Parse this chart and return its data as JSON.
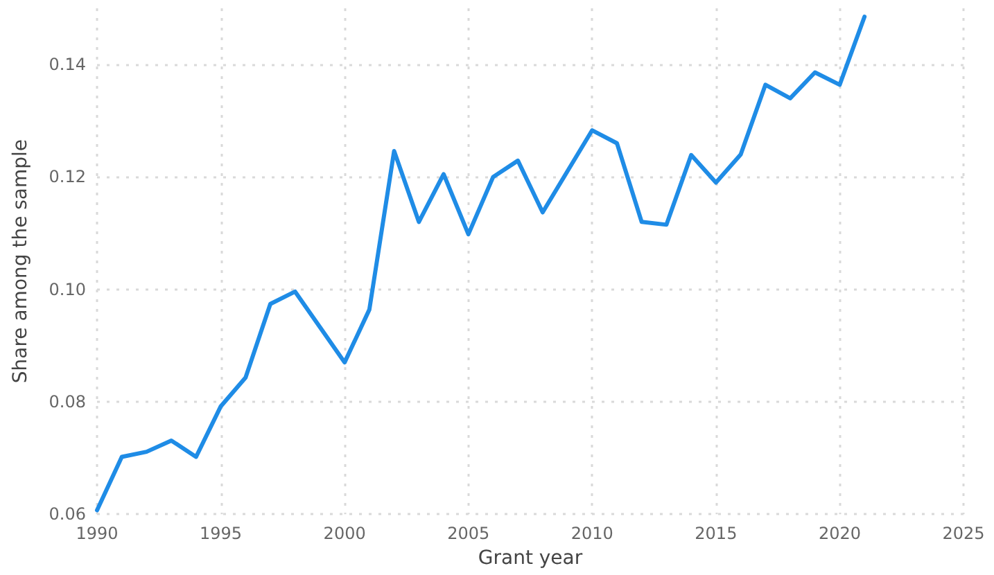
{
  "chart_data": {
    "type": "line",
    "xlabel": "Grant year",
    "ylabel": "Share among the sample",
    "x": [
      1990,
      1991,
      1992,
      1993,
      1994,
      1995,
      1996,
      1997,
      1998,
      1999,
      2000,
      2001,
      2002,
      2003,
      2004,
      2005,
      2006,
      2007,
      2008,
      2009,
      2010,
      2011,
      2012,
      2013,
      2014,
      2015,
      2016,
      2017,
      2018,
      2019,
      2020,
      2021
    ],
    "series": [
      {
        "color": "#1f8ce6",
        "values": [
          0.0607,
          0.0702,
          0.0711,
          0.0731,
          0.0702,
          0.0792,
          0.0843,
          0.0974,
          0.0996,
          0.0933,
          0.087,
          0.0964,
          0.1246,
          0.112,
          0.1205,
          0.1098,
          0.12,
          0.1229,
          0.1137,
          0.121,
          0.1283,
          0.126,
          0.112,
          0.1115,
          0.1239,
          0.119,
          0.124,
          0.1364,
          0.134,
          0.1386,
          0.1364,
          0.1485
        ]
      }
    ],
    "xlim": [
      1990,
      2025
    ],
    "xticks": [
      1990,
      1995,
      2000,
      2005,
      2010,
      2015,
      2020,
      2025
    ],
    "ylim": [
      0.06,
      0.15
    ],
    "yticks": [
      {
        "value": 0.06,
        "label": "0.06"
      },
      {
        "value": 0.08,
        "label": "0.08"
      },
      {
        "value": 0.1,
        "label": "0.10"
      },
      {
        "value": 0.12,
        "label": "0.12"
      },
      {
        "value": 0.14,
        "label": "0.14"
      }
    ],
    "grid": true,
    "marker": "none",
    "line_style": "solid"
  }
}
